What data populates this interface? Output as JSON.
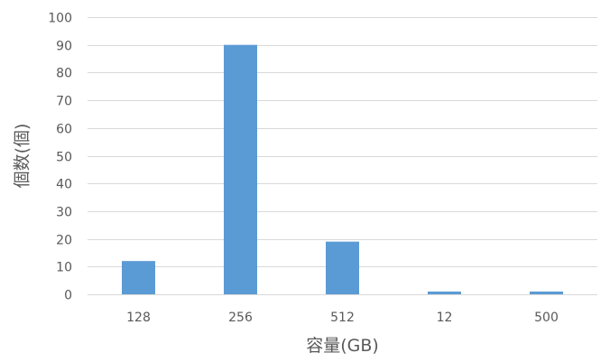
{
  "chart_data": {
    "type": "bar",
    "categories": [
      "128",
      "256",
      "512",
      "12",
      "500"
    ],
    "values": [
      12,
      90,
      19,
      1,
      1
    ],
    "xlabel": "容量(GB)",
    "ylabel": "個数(個)",
    "ylim": [
      0,
      100
    ],
    "yticks": [
      "0",
      "10",
      "20",
      "30",
      "40",
      "50",
      "60",
      "70",
      "80",
      "90",
      "100"
    ],
    "grid": true,
    "legend": "none",
    "bar_color": "#5b9bd5",
    "grid_color": "#d9d9d9",
    "text_color": "#595959"
  }
}
